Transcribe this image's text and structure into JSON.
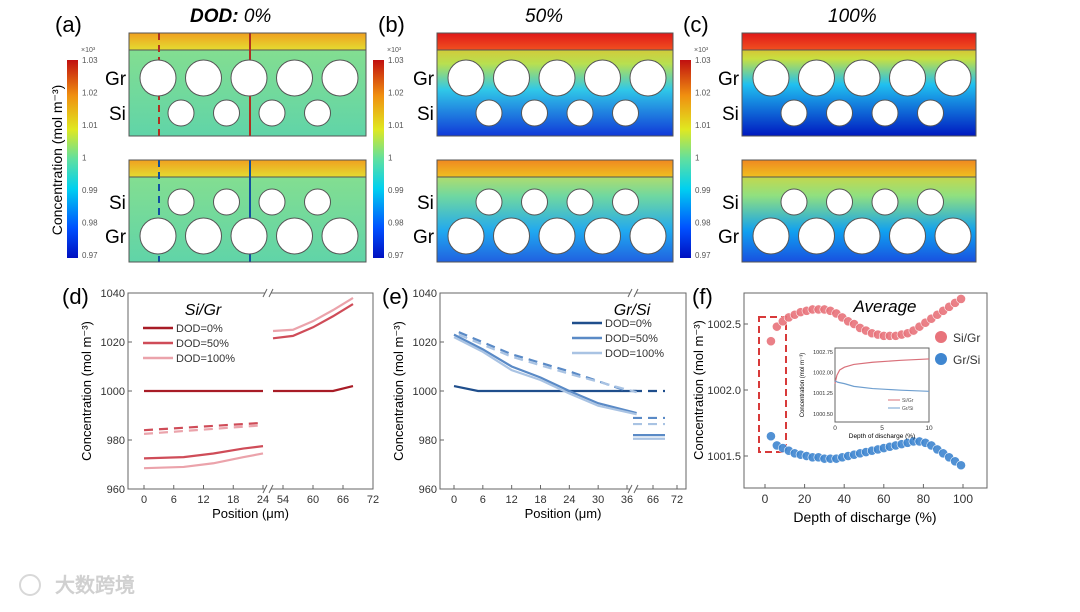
{
  "panels": {
    "a": {
      "label": "(a)",
      "title_bold": "DOD:",
      "title": " 0%"
    },
    "b": {
      "label": "(b)",
      "title": "50%"
    },
    "c": {
      "label": "(c)",
      "title": "100%"
    },
    "d": {
      "label": "(d)"
    },
    "e": {
      "label": "(e)"
    },
    "f": {
      "label": "(f)"
    }
  },
  "heatmap": {
    "colorbar_label": "Concentration (mol m⁻³)",
    "colorbar_exponent": "×10³",
    "colorbar_ticks": [
      "1.03",
      "1.02",
      "1.01",
      "1",
      "0.99",
      "0.98",
      "0.97"
    ],
    "layer_gr": "Gr",
    "layer_si": "Si"
  },
  "chart_data": [
    {
      "id": "d",
      "type": "line",
      "title": "Si/Gr",
      "xlabel": "Position (μm)",
      "ylabel": "Concentration (mol m⁻³)",
      "ylim": [
        960,
        1040
      ],
      "yticks": [
        "960",
        "980",
        "1000",
        "1020",
        "1040"
      ],
      "xticks": [
        "0",
        "6",
        "12",
        "18",
        "24",
        "54",
        "60",
        "66",
        "72"
      ],
      "x_break": [
        24,
        54
      ],
      "legend_position": "top-left",
      "series": [
        {
          "name": "DOD=0%",
          "color": "#a81c26"
        },
        {
          "name": "DOD=50%",
          "color": "#cf4c58"
        },
        {
          "name": "DOD=100%",
          "color": "#eba3ab"
        }
      ],
      "lines": [
        {
          "series": 0,
          "style": "solid",
          "points": [
            [
              0,
              1000
            ],
            [
              24,
              1000
            ]
          ]
        },
        {
          "series": 0,
          "style": "solid",
          "points": [
            [
              52,
              1000
            ],
            [
              64,
              1000
            ],
            [
              68,
              1002
            ]
          ]
        },
        {
          "series": 1,
          "style": "solid",
          "points": [
            [
              0,
              972.5
            ],
            [
              8,
              973
            ],
            [
              14,
              974.5
            ],
            [
              20,
              976.5
            ],
            [
              24,
              977.5
            ]
          ]
        },
        {
          "series": 2,
          "style": "solid",
          "points": [
            [
              0,
              968.5
            ],
            [
              8,
              969
            ],
            [
              14,
              970.5
            ],
            [
              20,
              973
            ],
            [
              24,
              974.5
            ]
          ]
        },
        {
          "series": 1,
          "style": "dashed",
          "points": [
            [
              0,
              984
            ],
            [
              24,
              987
            ]
          ]
        },
        {
          "series": 2,
          "style": "dashed",
          "points": [
            [
              0,
              982.5
            ],
            [
              24,
              986
            ]
          ]
        },
        {
          "series": 1,
          "style": "solid",
          "points": [
            [
              52,
              1021.5
            ],
            [
              56,
              1022.5
            ],
            [
              60,
              1026
            ],
            [
              64,
              1030.5
            ],
            [
              68,
              1035.5
            ]
          ]
        },
        {
          "series": 2,
          "style": "solid",
          "points": [
            [
              52,
              1024.5
            ],
            [
              56,
              1025
            ],
            [
              60,
              1028.5
            ],
            [
              64,
              1033
            ],
            [
              68,
              1038
            ]
          ]
        }
      ]
    },
    {
      "id": "e",
      "type": "line",
      "title": "Gr/Si",
      "xlabel": "Position (μm)",
      "ylabel": "Concentration (mol m⁻³)",
      "ylim": [
        960,
        1040
      ],
      "yticks": [
        "960",
        "980",
        "1000",
        "1020",
        "1040"
      ],
      "xticks": [
        "0",
        "6",
        "12",
        "18",
        "24",
        "30",
        "36",
        "66",
        "72"
      ],
      "x_break": [
        36,
        66
      ],
      "legend_position": "top-right",
      "series": [
        {
          "name": "DOD=0%",
          "color": "#1f4e8c"
        },
        {
          "name": "DOD=50%",
          "color": "#5a8ac6"
        },
        {
          "name": "DOD=100%",
          "color": "#a9c3e3"
        }
      ],
      "lines": [
        {
          "series": 0,
          "style": "solid",
          "points": [
            [
              0,
              1002
            ],
            [
              5,
              1000
            ],
            [
              38,
              1000
            ]
          ]
        },
        {
          "series": 0,
          "style": "dashed",
          "points": [
            [
              61,
              1000
            ],
            [
              69,
              1000
            ]
          ]
        },
        {
          "series": 1,
          "style": "solid",
          "points": [
            [
              0,
              1023
            ],
            [
              6,
              1017
            ],
            [
              12,
              1010
            ],
            [
              18,
              1005.5
            ],
            [
              24,
              1000
            ],
            [
              30,
              995
            ],
            [
              38,
              991
            ]
          ]
        },
        {
          "series": 2,
          "style": "solid",
          "points": [
            [
              0,
              1022
            ],
            [
              6,
              1016
            ],
            [
              12,
              1008.5
            ],
            [
              18,
              1004.5
            ],
            [
              24,
              999
            ],
            [
              30,
              994
            ],
            [
              38,
              990.5
            ]
          ]
        },
        {
          "series": 1,
          "style": "dashed",
          "points": [
            [
              1,
              1024
            ],
            [
              12,
              1015
            ],
            [
              24,
              1008
            ],
            [
              36,
              1000
            ]
          ]
        },
        {
          "series": 2,
          "style": "dashed",
          "points": [
            [
              1,
              1023
            ],
            [
              12,
              1014
            ],
            [
              24,
              1007
            ],
            [
              38,
              999.5
            ]
          ]
        },
        {
          "series": 1,
          "style": "dashed",
          "points": [
            [
              61,
              989
            ],
            [
              69,
              989
            ]
          ]
        },
        {
          "series": 2,
          "style": "dashed",
          "points": [
            [
              61,
              986.5
            ],
            [
              69,
              986.5
            ]
          ]
        },
        {
          "series": 1,
          "style": "solid",
          "points": [
            [
              61,
              982
            ],
            [
              69,
              982
            ]
          ]
        },
        {
          "series": 2,
          "style": "solid",
          "points": [
            [
              61,
              980.5
            ],
            [
              69,
              980.5
            ]
          ]
        }
      ]
    },
    {
      "id": "f",
      "type": "scatter",
      "title": "Average",
      "xlabel": "Depth of discharge (%)",
      "ylabel": "Concentration (mol m⁻³)",
      "xlim": [
        -10,
        110
      ],
      "ylim": [
        1001.26,
        1002.73
      ],
      "xticks": [
        "0",
        "20",
        "40",
        "60",
        "80",
        "100"
      ],
      "yticks": [
        "1001.5",
        "1002.0",
        "1002.5"
      ],
      "legend_position": "right",
      "x": [
        3,
        6,
        9,
        12,
        15,
        18,
        21,
        24,
        27,
        30,
        33,
        36,
        39,
        42,
        45,
        48,
        51,
        54,
        57,
        60,
        63,
        66,
        69,
        72,
        75,
        78,
        81,
        84,
        87,
        90,
        93,
        96,
        99
      ],
      "series": [
        {
          "name": "Si/Gr",
          "color": "#e8737b",
          "values": [
            1002.37,
            1002.48,
            1002.52,
            1002.55,
            1002.57,
            1002.59,
            1002.6,
            1002.61,
            1002.61,
            1002.61,
            1002.6,
            1002.58,
            1002.55,
            1002.52,
            1002.5,
            1002.47,
            1002.45,
            1002.43,
            1002.42,
            1002.41,
            1002.41,
            1002.41,
            1002.42,
            1002.43,
            1002.45,
            1002.48,
            1002.51,
            1002.54,
            1002.57,
            1002.6,
            1002.63,
            1002.66,
            1002.69
          ]
        },
        {
          "name": "Gr/Si",
          "color": "#3f86d0",
          "values": [
            1001.65,
            1001.58,
            1001.56,
            1001.54,
            1001.52,
            1001.51,
            1001.5,
            1001.49,
            1001.49,
            1001.48,
            1001.48,
            1001.48,
            1001.49,
            1001.5,
            1001.51,
            1001.52,
            1001.53,
            1001.54,
            1001.55,
            1001.56,
            1001.57,
            1001.58,
            1001.59,
            1001.6,
            1001.61,
            1001.61,
            1001.6,
            1001.58,
            1001.55,
            1001.52,
            1001.49,
            1001.46,
            1001.43
          ]
        }
      ],
      "inset": {
        "type": "line",
        "xlabel": "Depth of discharge (%)",
        "ylabel": "Concentration (mol m⁻³)",
        "xlim": [
          0,
          10
        ],
        "ylim": [
          1000.2,
          1002.9
        ],
        "xticks": [
          "0",
          "5",
          "10"
        ],
        "yticks": [
          "1000.50",
          "1001.25",
          "1002.00",
          "1002.75"
        ],
        "series": [
          {
            "name": "Si/Gr",
            "color": "#d9707a",
            "points": [
              [
                0,
                1001.6
              ],
              [
                0.2,
                1001.9
              ],
              [
                0.5,
                1002.1
              ],
              [
                1,
                1002.2
              ],
              [
                2,
                1002.3
              ],
              [
                4,
                1002.38
              ],
              [
                7,
                1002.45
              ],
              [
                10,
                1002.5
              ]
            ]
          },
          {
            "name": "Gr/Si",
            "color": "#6f9fcf",
            "points": [
              [
                0,
                1001.7
              ],
              [
                0.3,
                1001.65
              ],
              [
                1,
                1001.6
              ],
              [
                2,
                1001.5
              ],
              [
                4,
                1001.42
              ],
              [
                7,
                1001.36
              ],
              [
                10,
                1001.32
              ]
            ]
          }
        ]
      }
    }
  ],
  "watermark": "大数跨境"
}
